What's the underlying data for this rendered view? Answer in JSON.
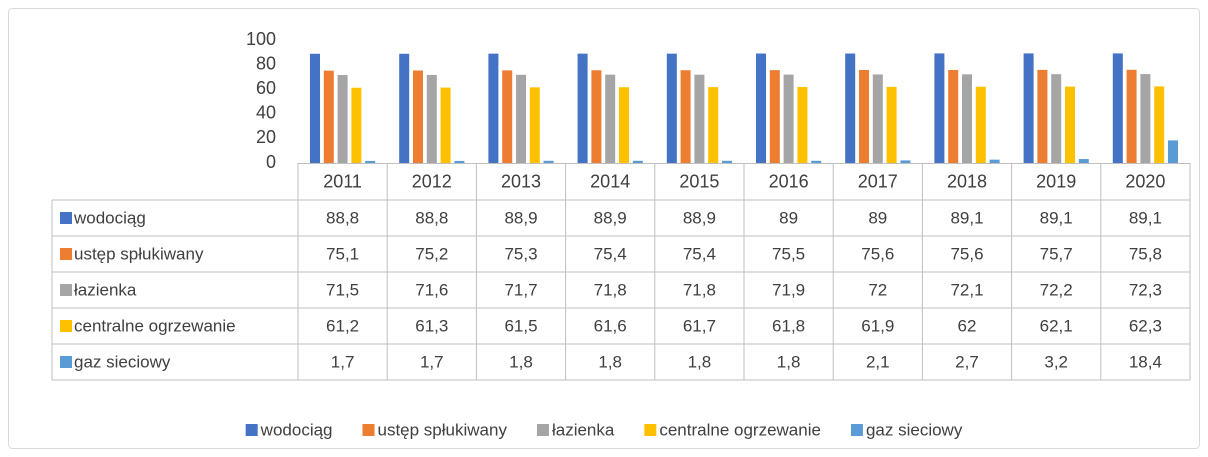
{
  "chart_data": {
    "type": "bar",
    "categories": [
      "2011",
      "2012",
      "2013",
      "2014",
      "2015",
      "2016",
      "2017",
      "2018",
      "2019",
      "2020"
    ],
    "series": [
      {
        "name": "wodociąg",
        "color": "#4472c4",
        "values": [
          88.8,
          88.8,
          88.9,
          88.9,
          88.9,
          89,
          89,
          89.1,
          89.1,
          89.1
        ],
        "value_labels": [
          "88,8",
          "88,8",
          "88,9",
          "88,9",
          "88,9",
          "89",
          "89",
          "89,1",
          "89,1",
          "89,1"
        ]
      },
      {
        "name": "ustęp spłukiwany",
        "color": "#ed7d31",
        "values": [
          75.1,
          75.2,
          75.3,
          75.4,
          75.4,
          75.5,
          75.6,
          75.6,
          75.7,
          75.8
        ],
        "value_labels": [
          "75,1",
          "75,2",
          "75,3",
          "75,4",
          "75,4",
          "75,5",
          "75,6",
          "75,6",
          "75,7",
          "75,8"
        ]
      },
      {
        "name": "łazienka",
        "color": "#a5a5a5",
        "values": [
          71.5,
          71.6,
          71.7,
          71.8,
          71.8,
          71.9,
          72,
          72.1,
          72.2,
          72.3
        ],
        "value_labels": [
          "71,5",
          "71,6",
          "71,7",
          "71,8",
          "71,8",
          "71,9",
          "72",
          "72,1",
          "72,2",
          "72,3"
        ]
      },
      {
        "name": "centralne ogrzewanie",
        "color": "#ffc000",
        "values": [
          61.2,
          61.3,
          61.5,
          61.6,
          61.7,
          61.8,
          61.9,
          62,
          62.1,
          62.3
        ],
        "value_labels": [
          "61,2",
          "61,3",
          "61,5",
          "61,6",
          "61,7",
          "61,8",
          "61,9",
          "62",
          "62,1",
          "62,3"
        ]
      },
      {
        "name": "gaz sieciowy",
        "color": "#5b9bd5",
        "values": [
          1.7,
          1.7,
          1.8,
          1.8,
          1.8,
          1.8,
          2.1,
          2.7,
          3.2,
          18.4
        ],
        "value_labels": [
          "1,7",
          "1,7",
          "1,8",
          "1,8",
          "1,8",
          "1,8",
          "2,1",
          "2,7",
          "3,2",
          "18,4"
        ]
      }
    ],
    "ylim": [
      0,
      100
    ],
    "yticks": [
      0,
      20,
      40,
      60,
      80,
      100
    ],
    "grid": false,
    "legend": "bottom"
  }
}
